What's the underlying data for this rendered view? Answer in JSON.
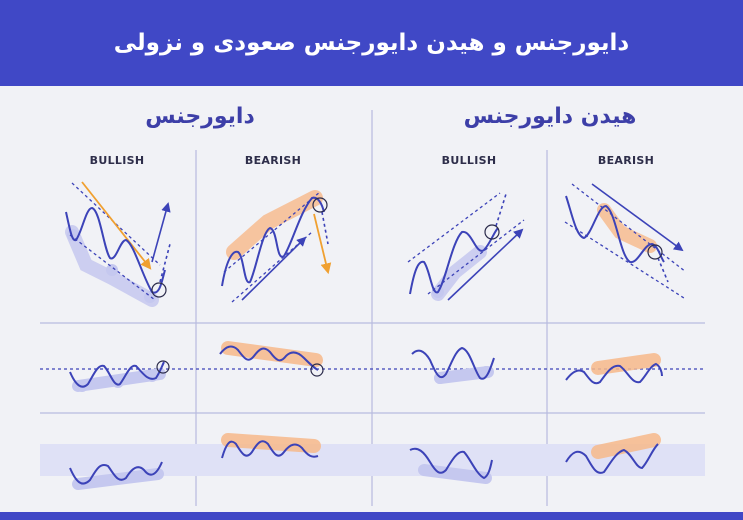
{
  "header": {
    "title": "دایورجنس و هیدن دایورجنس صعودی و نزولی"
  },
  "sections": {
    "regular": {
      "title": "دایورجنس"
    },
    "hidden": {
      "title": "هیدن دایورجنس"
    }
  },
  "columns": {
    "regular_bullish": "BULLISH",
    "regular_bearish": "BEARISH",
    "hidden_bullish": "BULLISH",
    "hidden_bearish": "BEARISH"
  },
  "colors": {
    "banner": "#4048c6",
    "line": "#3c43b8",
    "arrow_orange": "#f0a030",
    "highlight_orange": "#f7b88a",
    "highlight_blue": "#c5c8ef",
    "divider": "#b8bbdf",
    "band": "#dfe1f6"
  }
}
